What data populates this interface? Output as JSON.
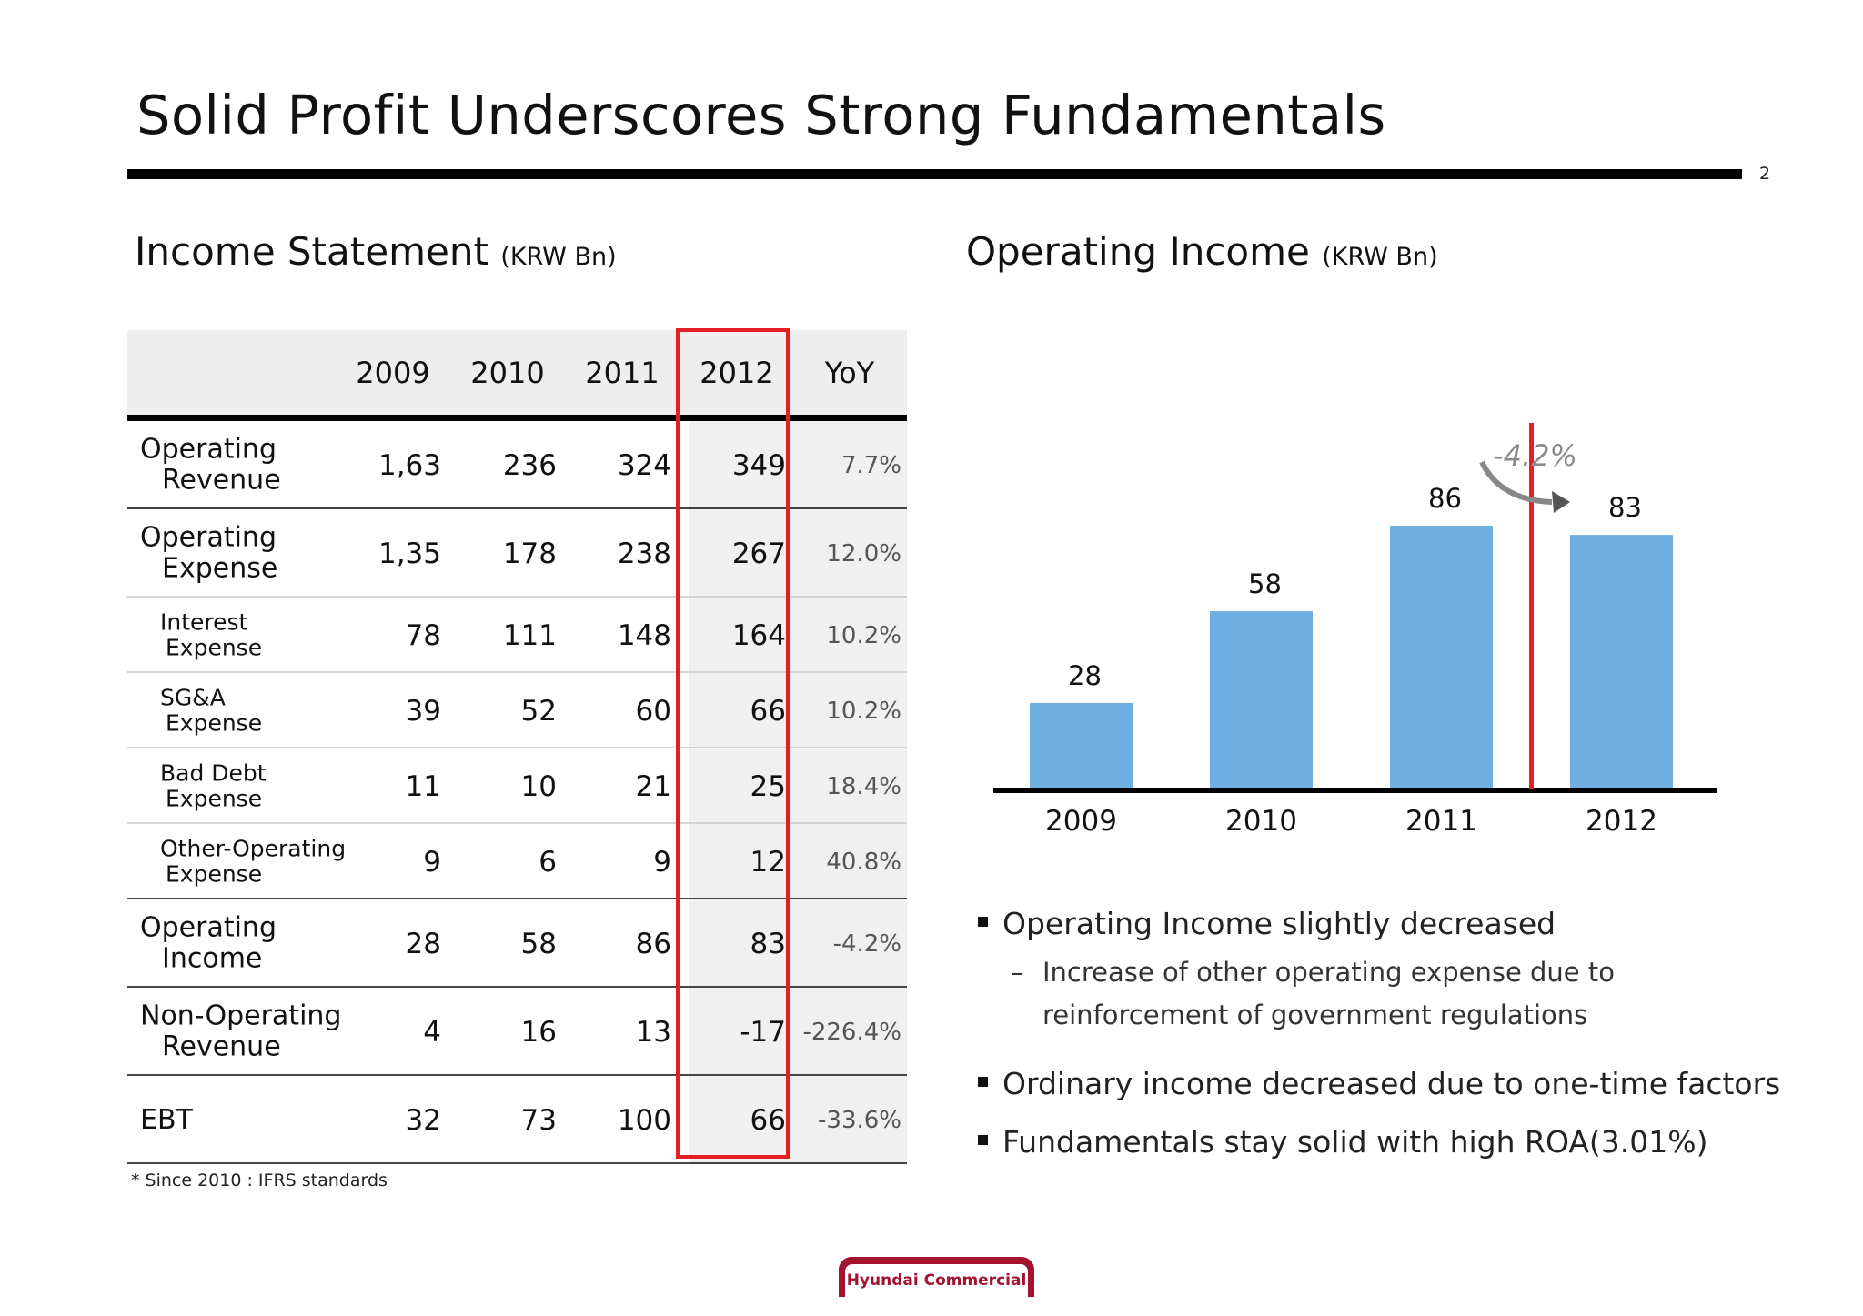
{
  "title": "Solid Profit Underscores Strong Fundamentals",
  "page_number": "2",
  "income_statement": {
    "title": "Income Statement",
    "unit": "(KRW Bn)",
    "columns": [
      "2009",
      "2010",
      "2011",
      "2012",
      "YoY"
    ],
    "highlight_column": "2012",
    "rows": [
      {
        "label_line1": "Operating",
        "label_line2": "Revenue",
        "level": "major",
        "values": [
          "1,63",
          "236",
          "324",
          "349"
        ],
        "yoy": "7.7%"
      },
      {
        "label_line1": "Operating",
        "label_line2": "Expense",
        "level": "major",
        "values": [
          "1,35",
          "178",
          "238",
          "267"
        ],
        "yoy": "12.0%"
      },
      {
        "label_line1": "Interest",
        "label_line2": "Expense",
        "level": "minor",
        "values": [
          "78",
          "111",
          "148",
          "164"
        ],
        "yoy": "10.2%"
      },
      {
        "label_line1": "SG&A",
        "label_line2": "Expense",
        "level": "minor",
        "values": [
          "39",
          "52",
          "60",
          "66"
        ],
        "yoy": "10.2%"
      },
      {
        "label_line1": "Bad Debt",
        "label_line2": "Expense",
        "level": "minor",
        "values": [
          "11",
          "10",
          "21",
          "25"
        ],
        "yoy": "18.4%"
      },
      {
        "label_line1": "Other-Operating",
        "label_line2": "Expense",
        "level": "minor",
        "values": [
          "9",
          "6",
          "9",
          "12"
        ],
        "yoy": "40.8%"
      },
      {
        "label_line1": "Operating",
        "label_line2": "Income",
        "level": "major",
        "values": [
          "28",
          "58",
          "86",
          "83"
        ],
        "yoy": "-4.2%"
      },
      {
        "label_line1": "Non-Operating",
        "label_line2": "Revenue",
        "level": "major",
        "values": [
          "4",
          "16",
          "13",
          "-17"
        ],
        "yoy": "-226.4%"
      },
      {
        "label_line1": "EBT",
        "label_line2": "",
        "level": "major",
        "values": [
          "32",
          "73",
          "100",
          "66"
        ],
        "yoy": "-33.6%"
      }
    ],
    "footnote": "* Since 2010 : IFRS standards"
  },
  "operating_income": {
    "title": "Operating Income",
    "unit": "(KRW Bn)"
  },
  "chart_data": {
    "type": "bar",
    "title": "Operating Income (KRW Bn)",
    "categories": [
      "2009",
      "2010",
      "2011",
      "2012"
    ],
    "values": [
      28,
      58,
      86,
      83
    ],
    "xlabel": "",
    "ylabel": "",
    "ylim": [
      0,
      100
    ],
    "grid": false,
    "annotations": [
      {
        "text": "-4.2%",
        "from": "2011",
        "to": "2012"
      }
    ],
    "bar_color": "#6eaee0",
    "marker_color": "#e31e24"
  },
  "bullets": [
    {
      "text": "Operating Income slightly decreased",
      "sub": {
        "dash": "–",
        "text": "Increase of other operating expense due to reinforcement of government regulations"
      }
    },
    {
      "text": "Ordinary income decreased due to one-time factors"
    },
    {
      "text": "Fundamentals stay solid with high ROA(3.01%)"
    }
  ],
  "logo_text": "Hyundai Commercial",
  "colors": {
    "accent_red": "#e31e24",
    "brand": "#a3132f",
    "bar": "#6eaee0"
  }
}
